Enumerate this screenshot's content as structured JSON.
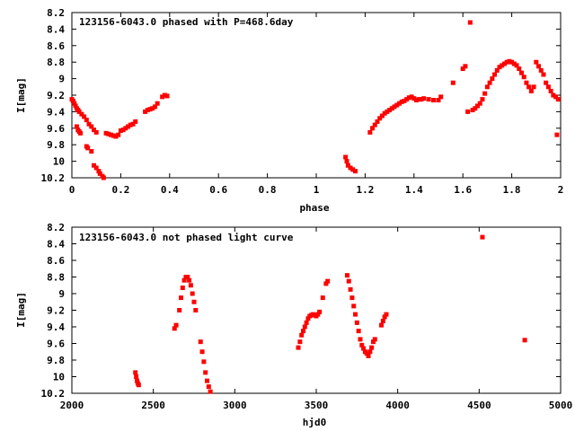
{
  "chart_data": [
    {
      "type": "scatter",
      "title": "123156-6043.0 phased with P=468.6day",
      "xlabel": "phase",
      "ylabel": "I[mag]",
      "xlim": [
        0,
        2
      ],
      "ylim": [
        10.2,
        8.2
      ],
      "xticks": [
        "0",
        "0.2",
        "0.4",
        "0.6",
        "0.8",
        "1",
        "1.2",
        "1.4",
        "1.6",
        "1.8",
        "2"
      ],
      "yticks": [
        "8.2",
        "8.4",
        "8.6",
        "8.8",
        "9",
        "9.2",
        "9.4",
        "9.6",
        "9.8",
        "10",
        "10.2"
      ],
      "grid": false,
      "color": "#ff0000",
      "series": [
        {
          "x": [
            0.0,
            0.005,
            0.01,
            0.015,
            0.02,
            0.025,
            0.03,
            0.04,
            0.05,
            0.06,
            0.07,
            0.08,
            0.09,
            0.1,
            0.02,
            0.025,
            0.03,
            0.035,
            0.06,
            0.065,
            0.08,
            0.09,
            0.1,
            0.11,
            0.115,
            0.125,
            0.13,
            0.14,
            0.15,
            0.16,
            0.17,
            0.18,
            0.19,
            0.2,
            0.21,
            0.22,
            0.23,
            0.24,
            0.25,
            0.26,
            0.3,
            0.31,
            0.32,
            0.33,
            0.34,
            0.35,
            0.37,
            0.38,
            0.39,
            1.12,
            1.125,
            1.13,
            1.14,
            1.15,
            1.16,
            1.22,
            1.23,
            1.24,
            1.25,
            1.26,
            1.27,
            1.28,
            1.29,
            1.3,
            1.31,
            1.32,
            1.33,
            1.34,
            1.35,
            1.36,
            1.37,
            1.38,
            1.39,
            1.4,
            1.41,
            1.42,
            1.43,
            1.44,
            1.46,
            1.48,
            1.5,
            1.51,
            1.56,
            1.6,
            1.61,
            1.63,
            1.62,
            1.64,
            1.65,
            1.66,
            1.67,
            1.68,
            1.69,
            1.7,
            1.71,
            1.72,
            1.73,
            1.74,
            1.75,
            1.76,
            1.77,
            1.78,
            1.79,
            1.8,
            1.81,
            1.82,
            1.83,
            1.84,
            1.85,
            1.86,
            1.87,
            1.88,
            1.89,
            1.9,
            1.91,
            1.92,
            1.93,
            1.94,
            1.95,
            1.96,
            1.97,
            1.98,
            1.99,
            1.985
          ],
          "y": [
            9.25,
            9.27,
            9.3,
            9.33,
            9.36,
            9.38,
            9.4,
            9.43,
            9.46,
            9.5,
            9.55,
            9.58,
            9.62,
            9.65,
            9.58,
            9.62,
            9.64,
            9.66,
            9.82,
            9.84,
            9.88,
            10.05,
            10.08,
            10.12,
            10.15,
            10.18,
            10.2,
            9.66,
            9.67,
            9.68,
            9.69,
            9.7,
            9.68,
            9.63,
            9.62,
            9.6,
            9.58,
            9.56,
            9.55,
            9.52,
            9.4,
            9.38,
            9.37,
            9.36,
            9.34,
            9.3,
            9.22,
            9.2,
            9.21,
            9.95,
            10.0,
            10.05,
            10.08,
            10.1,
            10.12,
            9.65,
            9.6,
            9.56,
            9.52,
            9.48,
            9.45,
            9.42,
            9.4,
            9.38,
            9.36,
            9.34,
            9.32,
            9.3,
            9.28,
            9.27,
            9.25,
            9.23,
            9.22,
            9.24,
            9.26,
            9.25,
            9.25,
            9.24,
            9.25,
            9.26,
            9.26,
            9.22,
            9.05,
            8.88,
            8.85,
            8.32,
            9.4,
            9.38,
            9.36,
            9.33,
            9.3,
            9.25,
            9.18,
            9.1,
            9.05,
            9.0,
            8.95,
            8.9,
            8.86,
            8.84,
            8.82,
            8.8,
            8.79,
            8.8,
            8.82,
            8.84,
            8.88,
            8.93,
            8.98,
            9.05,
            9.1,
            9.15,
            9.1,
            8.8,
            8.85,
            8.9,
            8.95,
            9.05,
            9.1,
            9.15,
            9.2,
            9.22,
            9.25,
            9.68
          ]
        }
      ]
    },
    {
      "type": "scatter",
      "title": "123156-6043.0 not phased light curve",
      "xlabel": "hjd0",
      "ylabel": "I[mag]",
      "xlim": [
        2000,
        5000
      ],
      "ylim": [
        10.2,
        8.2
      ],
      "xticks": [
        "2000",
        "2500",
        "3000",
        "3500",
        "4000",
        "4500",
        "5000"
      ],
      "yticks": [
        "8.2",
        "8.4",
        "8.6",
        "8.8",
        "9",
        "9.2",
        "9.4",
        "9.6",
        "9.8",
        "10",
        "10.2"
      ],
      "grid": false,
      "color": "#ff0000",
      "series": [
        {
          "x": [
            2390,
            2395,
            2400,
            2405,
            2410,
            2630,
            2640,
            2660,
            2670,
            2680,
            2690,
            2700,
            2710,
            2720,
            2730,
            2740,
            2750,
            2760,
            2790,
            2800,
            2810,
            2820,
            2830,
            2840,
            2850,
            3390,
            3400,
            3410,
            3420,
            3430,
            3440,
            3450,
            3460,
            3470,
            3480,
            3490,
            3500,
            3510,
            3520,
            3540,
            3560,
            3570,
            3690,
            3700,
            3710,
            3720,
            3730,
            3740,
            3750,
            3760,
            3770,
            3780,
            3790,
            3800,
            3810,
            3820,
            3830,
            3840,
            3850,
            3860,
            3900,
            3910,
            3920,
            3930,
            4520,
            4780
          ],
          "y": [
            9.95,
            10.0,
            10.05,
            10.08,
            10.1,
            9.42,
            9.38,
            9.2,
            9.05,
            8.93,
            8.84,
            8.8,
            8.8,
            8.84,
            8.9,
            9.0,
            9.1,
            9.2,
            9.58,
            9.7,
            9.82,
            9.95,
            10.05,
            10.12,
            10.18,
            9.65,
            9.58,
            9.5,
            9.45,
            9.4,
            9.35,
            9.3,
            9.27,
            9.26,
            9.25,
            9.26,
            9.27,
            9.25,
            9.22,
            9.05,
            8.88,
            8.85,
            8.78,
            8.85,
            8.95,
            9.05,
            9.15,
            9.25,
            9.35,
            9.45,
            9.55,
            9.62,
            9.66,
            9.7,
            9.72,
            9.75,
            9.7,
            9.65,
            9.58,
            9.55,
            9.38,
            9.33,
            9.28,
            9.25,
            8.32,
            9.56
          ]
        }
      ]
    }
  ]
}
